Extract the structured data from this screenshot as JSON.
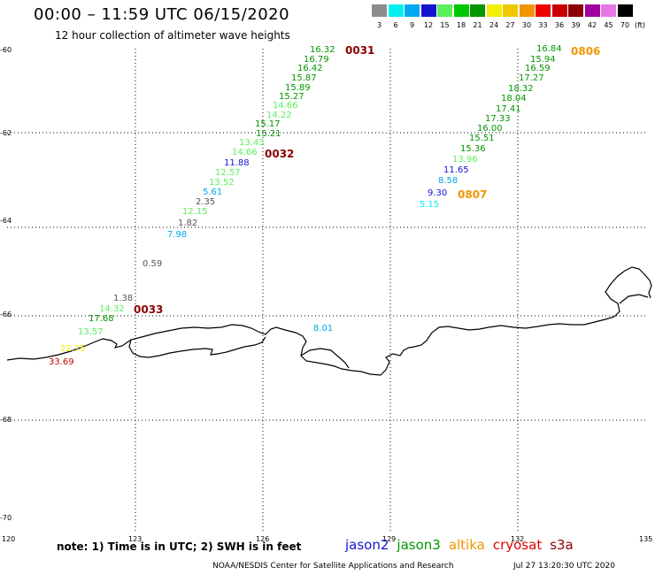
{
  "header": {
    "title": "00:00 – 11:59 UTC 06/15/2020",
    "subtitle": "12 hour collection of altimeter wave heights"
  },
  "legend": {
    "unit": "(ft)",
    "bins": [
      {
        "label": "3",
        "color": "#8c8c8c"
      },
      {
        "label": "6",
        "color": "#00f0f0"
      },
      {
        "label": "9",
        "color": "#00a8f0"
      },
      {
        "label": "12",
        "color": "#1414d0"
      },
      {
        "label": "15",
        "color": "#5af05a"
      },
      {
        "label": "18",
        "color": "#00c800"
      },
      {
        "label": "21",
        "color": "#009600"
      },
      {
        "label": "24",
        "color": "#f0f000"
      },
      {
        "label": "27",
        "color": "#f0c800"
      },
      {
        "label": "30",
        "color": "#f09600"
      },
      {
        "label": "33",
        "color": "#f00000"
      },
      {
        "label": "36",
        "color": "#c80000"
      },
      {
        "label": "39",
        "color": "#8c0000"
      },
      {
        "label": "42",
        "color": "#a000a0"
      },
      {
        "label": "45",
        "color": "#e678e6"
      },
      {
        "label": "70",
        "color": "#000000"
      }
    ]
  },
  "axes": {
    "lon_labels": [
      "120",
      "123",
      "126",
      "129",
      "132",
      "135"
    ],
    "lat_labels": [
      "-60",
      "-62",
      "-64",
      "-66",
      "-68",
      "-70"
    ]
  },
  "observations": [
    {
      "text": "16.32",
      "color": "#009600"
    },
    {
      "text": "16.79",
      "color": "#009600"
    },
    {
      "text": "16.42",
      "color": "#009600"
    },
    {
      "text": "15.87",
      "color": "#009600"
    },
    {
      "text": "15.89",
      "color": "#009600"
    },
    {
      "text": "15.27",
      "color": "#009600"
    },
    {
      "text": "14.66",
      "color": "#5af05a"
    },
    {
      "text": "14.22",
      "color": "#5af05a"
    },
    {
      "text": "15.17",
      "color": "#009600"
    },
    {
      "text": "15.21",
      "color": "#009600"
    },
    {
      "text": "13.43",
      "color": "#5af05a"
    },
    {
      "text": "14.66",
      "color": "#5af05a"
    },
    {
      "text": "11.88",
      "color": "#1414d0"
    },
    {
      "text": "12.57",
      "color": "#5af05a"
    },
    {
      "text": "13.52",
      "color": "#5af05a"
    },
    {
      "text": "5.61",
      "color": "#00a8f0"
    },
    {
      "text": "2.35",
      "color": "#555555"
    },
    {
      "text": "12.15",
      "color": "#5af05a"
    },
    {
      "text": "1.82",
      "color": "#555555"
    },
    {
      "text": "7.98",
      "color": "#00a8f0"
    },
    {
      "text": "0.59",
      "color": "#555555"
    },
    {
      "text": "1.38",
      "color": "#555555"
    },
    {
      "text": "14.32",
      "color": "#5af05a"
    },
    {
      "text": "17.68",
      "color": "#009600"
    },
    {
      "text": "13.57",
      "color": "#5af05a"
    },
    {
      "text": "22.75",
      "color": "#f0f000"
    },
    {
      "text": "33.69",
      "color": "#c80000"
    },
    {
      "text": "8.01",
      "color": "#00a8f0"
    },
    {
      "text": "16.84",
      "color": "#009600"
    },
    {
      "text": "15.94",
      "color": "#009600"
    },
    {
      "text": "16.59",
      "color": "#009600"
    },
    {
      "text": "17.27",
      "color": "#009600"
    },
    {
      "text": "18.32",
      "color": "#009600"
    },
    {
      "text": "18.04",
      "color": "#009600"
    },
    {
      "text": "17.41",
      "color": "#009600"
    },
    {
      "text": "17.33",
      "color": "#009600"
    },
    {
      "text": "16.00",
      "color": "#009600"
    },
    {
      "text": "15.51",
      "color": "#009600"
    },
    {
      "text": "15.36",
      "color": "#009600"
    },
    {
      "text": "13.96",
      "color": "#5af05a"
    },
    {
      "text": "11.65",
      "color": "#1414d0"
    },
    {
      "text": "8.58",
      "color": "#00a8f0"
    },
    {
      "text": "9.30",
      "color": "#1414d0"
    },
    {
      "text": "5.15",
      "color": "#00f0f0"
    }
  ],
  "pass_times": [
    {
      "text": "0031",
      "color": "#8c0000"
    },
    {
      "text": "0032",
      "color": "#8c0000"
    },
    {
      "text": "0033",
      "color": "#8c0000"
    },
    {
      "text": "0806",
      "color": "#f09600"
    },
    {
      "text": "0807",
      "color": "#f09600"
    }
  ],
  "footer": {
    "note": "note:  1) Time is in UTC;  2) SWH is in feet",
    "satellites": [
      {
        "name": "jason2",
        "color": "#1414d0"
      },
      {
        "name": "jason3",
        "color": "#009600"
      },
      {
        "name": "altika",
        "color": "#f09600"
      },
      {
        "name": "cryosat",
        "color": "#e00000"
      },
      {
        "name": "s3a",
        "color": "#8c0000"
      }
    ],
    "credit": "NOAA/NESDIS Center for Satellite Applications and Research",
    "timestamp": "Jul 27 13:20:30 UTC 2020"
  }
}
